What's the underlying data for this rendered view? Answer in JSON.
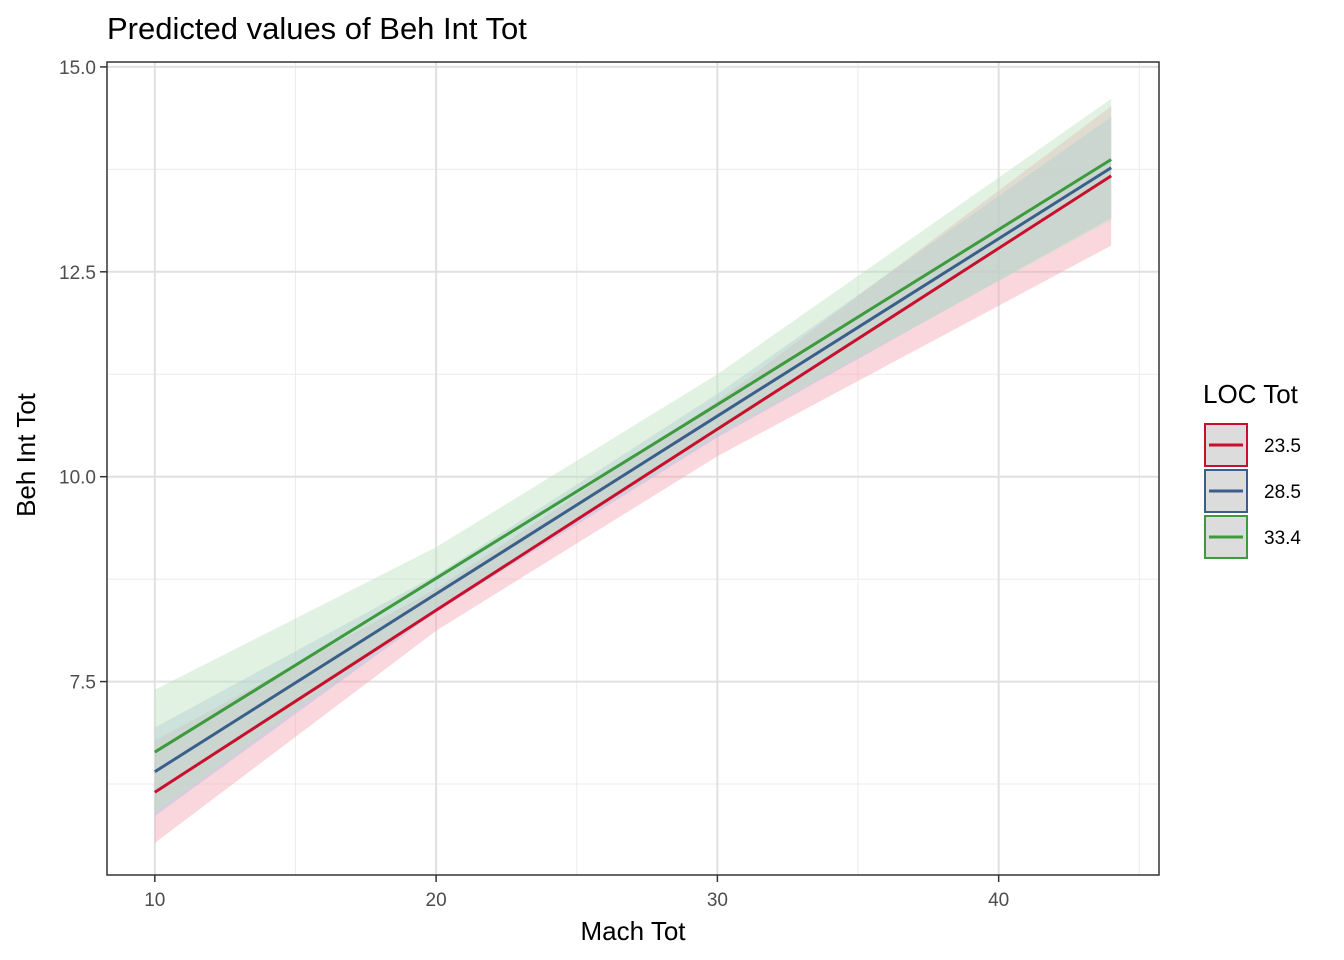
{
  "chart_data": {
    "type": "line",
    "title": "Predicted values of Beh Int Tot",
    "xlabel": "Mach Tot",
    "ylabel": "Beh Int Tot",
    "xlim": [
      8.3,
      45.7
    ],
    "ylim": [
      5.14,
      15.06
    ],
    "x_ticks": [
      10,
      20,
      30,
      40
    ],
    "y_ticks": [
      7.5,
      10.0,
      12.5,
      15.0
    ],
    "x_tick_labels": [
      "10",
      "20",
      "30",
      "40"
    ],
    "y_tick_labels": [
      "7.5",
      "10.0",
      "12.5",
      "15.0"
    ],
    "grid": true,
    "legend": {
      "title": "LOC Tot",
      "position": "right"
    },
    "x": [
      10,
      20,
      30,
      44
    ],
    "series": [
      {
        "name": "23.5",
        "color": "#c8102e",
        "band_color": "#f4a7b4",
        "values": [
          6.15,
          8.37,
          10.58,
          13.67
        ],
        "lower": [
          5.53,
          8.12,
          10.25,
          12.82
        ],
        "upper": [
          6.78,
          8.63,
          10.92,
          14.52
        ]
      },
      {
        "name": "28.5",
        "color": "#3a5f8a",
        "band_color": "#a9bfdf",
        "values": [
          6.4,
          8.57,
          10.74,
          13.77
        ],
        "lower": [
          5.86,
          8.35,
          10.48,
          13.16
        ],
        "upper": [
          6.94,
          8.8,
          11.01,
          14.39
        ]
      },
      {
        "name": "33.4",
        "color": "#3d9a3d",
        "band_color": "#bfe3bf",
        "values": [
          6.64,
          8.76,
          10.88,
          13.87
        ],
        "lower": [
          5.9,
          8.41,
          10.52,
          13.13
        ],
        "upper": [
          7.4,
          9.14,
          11.25,
          14.61
        ]
      }
    ]
  }
}
